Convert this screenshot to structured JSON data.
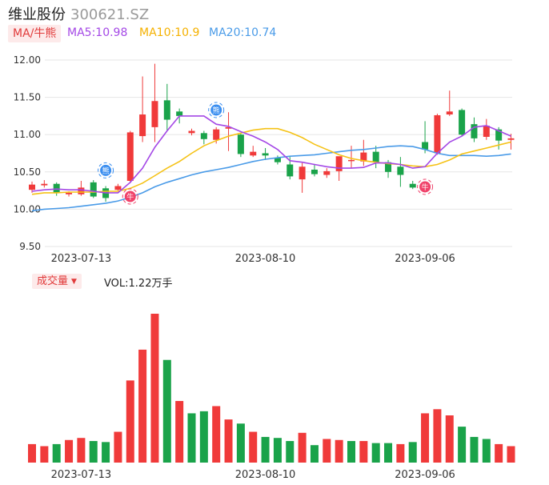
{
  "header": {
    "name": "维业股份",
    "code": "300621.SZ"
  },
  "ma_legend": {
    "tag": "MA/牛熊",
    "ma5": "MA5:10.98",
    "ma10": "MA10:10.9",
    "ma20": "MA20:10.74"
  },
  "volume_legend": {
    "tag": "成交量",
    "caret": "▼",
    "value": "VOL:1.22万手"
  },
  "colors": {
    "up": "#f03a3a",
    "down": "#1aa34a",
    "ma5": "#a448e6",
    "ma10": "#f5c216",
    "ma20": "#4a9be8",
    "grid": "#e6e6e6"
  },
  "markers": {
    "bull": "牛",
    "bear": "熊"
  },
  "chart_data": [
    {
      "type": "candlestick",
      "ylim": [
        9.5,
        12.0
      ],
      "yticks": [
        "12.00",
        "11.50",
        "11.00",
        "10.50",
        "10.00",
        "9.50"
      ],
      "xticks": [
        "2023-07-13",
        "2023-08-10",
        "2023-09-06"
      ],
      "candles": [
        {
          "o": 10.26,
          "h": 10.37,
          "l": 10.22,
          "c": 10.33
        },
        {
          "o": 10.32,
          "h": 10.39,
          "l": 10.29,
          "c": 10.34
        },
        {
          "o": 10.34,
          "h": 10.36,
          "l": 10.18,
          "c": 10.22
        },
        {
          "o": 10.2,
          "h": 10.24,
          "l": 10.17,
          "c": 10.22
        },
        {
          "o": 10.2,
          "h": 10.38,
          "l": 10.18,
          "c": 10.29
        },
        {
          "o": 10.36,
          "h": 10.39,
          "l": 10.15,
          "c": 10.17
        },
        {
          "o": 10.28,
          "h": 10.31,
          "l": 10.1,
          "c": 10.15
        },
        {
          "o": 10.26,
          "h": 10.34,
          "l": 10.25,
          "c": 10.31
        },
        {
          "o": 10.38,
          "h": 11.05,
          "l": 10.35,
          "c": 11.03
        },
        {
          "o": 10.98,
          "h": 11.78,
          "l": 10.9,
          "c": 11.27
        },
        {
          "o": 11.1,
          "h": 11.95,
          "l": 10.9,
          "c": 11.45
        },
        {
          "o": 11.46,
          "h": 11.68,
          "l": 11.05,
          "c": 11.2
        },
        {
          "o": 11.31,
          "h": 11.35,
          "l": 11.15,
          "c": 11.25
        },
        {
          "o": 11.02,
          "h": 11.08,
          "l": 10.99,
          "c": 11.05
        },
        {
          "o": 11.02,
          "h": 11.05,
          "l": 10.87,
          "c": 10.94
        },
        {
          "o": 10.93,
          "h": 11.1,
          "l": 10.88,
          "c": 11.07
        },
        {
          "o": 11.08,
          "h": 11.3,
          "l": 10.78,
          "c": 11.1
        },
        {
          "o": 11.0,
          "h": 11.02,
          "l": 10.7,
          "c": 10.74
        },
        {
          "o": 10.72,
          "h": 10.85,
          "l": 10.7,
          "c": 10.77
        },
        {
          "o": 10.75,
          "h": 10.82,
          "l": 10.66,
          "c": 10.72
        },
        {
          "o": 10.69,
          "h": 10.72,
          "l": 10.6,
          "c": 10.63
        },
        {
          "o": 10.6,
          "h": 10.7,
          "l": 10.4,
          "c": 10.44
        },
        {
          "o": 10.4,
          "h": 10.62,
          "l": 10.22,
          "c": 10.57
        },
        {
          "o": 10.53,
          "h": 10.6,
          "l": 10.44,
          "c": 10.47
        },
        {
          "o": 10.46,
          "h": 10.55,
          "l": 10.42,
          "c": 10.51
        },
        {
          "o": 10.51,
          "h": 10.7,
          "l": 10.38,
          "c": 10.71
        },
        {
          "o": 10.65,
          "h": 10.85,
          "l": 10.55,
          "c": 10.66
        },
        {
          "o": 10.64,
          "h": 10.93,
          "l": 10.58,
          "c": 10.76
        },
        {
          "o": 10.77,
          "h": 10.85,
          "l": 10.55,
          "c": 10.63
        },
        {
          "o": 10.63,
          "h": 10.66,
          "l": 10.42,
          "c": 10.5
        },
        {
          "o": 10.57,
          "h": 10.7,
          "l": 10.3,
          "c": 10.46
        },
        {
          "o": 10.34,
          "h": 10.38,
          "l": 10.27,
          "c": 10.29
        },
        {
          "o": 10.9,
          "h": 11.18,
          "l": 10.75,
          "c": 10.8
        },
        {
          "o": 10.75,
          "h": 11.28,
          "l": 10.73,
          "c": 11.26
        },
        {
          "o": 11.27,
          "h": 11.59,
          "l": 11.25,
          "c": 11.31
        },
        {
          "o": 11.33,
          "h": 11.35,
          "l": 10.98,
          "c": 11.0
        },
        {
          "o": 11.14,
          "h": 11.23,
          "l": 10.9,
          "c": 10.95
        },
        {
          "o": 10.97,
          "h": 11.21,
          "l": 10.93,
          "c": 11.12
        },
        {
          "o": 11.07,
          "h": 11.1,
          "l": 10.8,
          "c": 10.92
        },
        {
          "o": 10.93,
          "h": 11.01,
          "l": 10.8,
          "c": 10.95
        }
      ],
      "ma5": [
        10.24,
        10.26,
        10.27,
        10.26,
        10.26,
        10.24,
        10.22,
        10.22,
        10.36,
        10.55,
        10.83,
        11.05,
        11.25,
        11.25,
        11.25,
        11.14,
        11.11,
        11.04,
        10.98,
        10.9,
        10.8,
        10.65,
        10.63,
        10.6,
        10.57,
        10.55,
        10.55,
        10.56,
        10.62,
        10.62,
        10.6,
        10.55,
        10.57,
        10.75,
        10.9,
        10.98,
        11.1,
        11.12,
        11.05,
        10.98
      ],
      "ma10": [
        10.2,
        10.22,
        10.22,
        10.23,
        10.23,
        10.23,
        10.24,
        10.24,
        10.28,
        10.35,
        10.45,
        10.55,
        10.64,
        10.75,
        10.85,
        10.92,
        10.98,
        11.02,
        11.06,
        11.08,
        11.08,
        11.03,
        10.96,
        10.87,
        10.8,
        10.73,
        10.68,
        10.65,
        10.63,
        10.61,
        10.6,
        10.58,
        10.57,
        10.6,
        10.66,
        10.74,
        10.78,
        10.82,
        10.86,
        10.9
      ],
      "ma20": [
        9.98,
        10.0,
        10.01,
        10.02,
        10.04,
        10.06,
        10.08,
        10.11,
        10.16,
        10.22,
        10.3,
        10.36,
        10.41,
        10.46,
        10.5,
        10.53,
        10.56,
        10.6,
        10.64,
        10.67,
        10.69,
        10.71,
        10.72,
        10.73,
        10.75,
        10.77,
        10.79,
        10.8,
        10.82,
        10.84,
        10.85,
        10.84,
        10.8,
        10.75,
        10.72,
        10.72,
        10.72,
        10.71,
        10.72,
        10.74
      ],
      "markers": [
        {
          "index": 6,
          "type": "bear",
          "price": 10.52
        },
        {
          "index": 8,
          "type": "bull",
          "price": 10.17
        },
        {
          "index": 15,
          "type": "bear",
          "price": 11.33
        },
        {
          "index": 32,
          "type": "bull",
          "price": 10.3
        }
      ]
    },
    {
      "type": "bar",
      "title": "成交量",
      "volumes": [
        18,
        16,
        18,
        22,
        24,
        21,
        20,
        30,
        80,
        110,
        145,
        100,
        60,
        48,
        50,
        55,
        42,
        38,
        30,
        25,
        24,
        21,
        29,
        17,
        23,
        22,
        21,
        21,
        19,
        19,
        18,
        20,
        48,
        52,
        46,
        35,
        25,
        23,
        18,
        16
      ],
      "colors": [
        "up",
        "up",
        "down",
        "up",
        "up",
        "down",
        "down",
        "up",
        "up",
        "up",
        "up",
        "down",
        "up",
        "down",
        "down",
        "up",
        "up",
        "down",
        "up",
        "down",
        "down",
        "down",
        "up",
        "down",
        "up",
        "up",
        "down",
        "up",
        "down",
        "down",
        "up",
        "down",
        "up",
        "up",
        "up",
        "down",
        "down",
        "down",
        "up",
        "up"
      ]
    }
  ]
}
